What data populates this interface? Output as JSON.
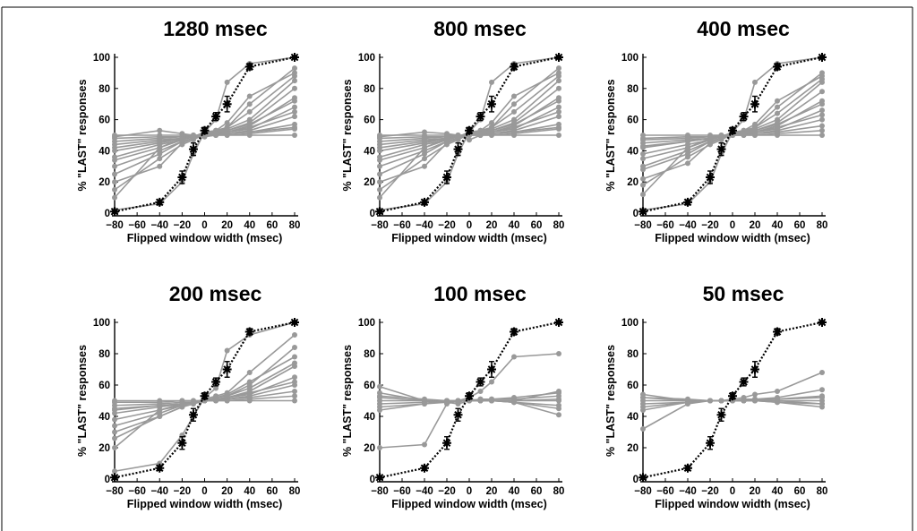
{
  "colors": {
    "individual": "#999999",
    "mean": "#000000",
    "border": "#000000"
  },
  "chart_data": [
    {
      "type": "line",
      "title": "1280 msec",
      "xlabel": "Flipped window width (msec)",
      "ylabel": "% \"LAST\" responses",
      "x": [
        -80,
        -40,
        -20,
        -10,
        0,
        10,
        20,
        40,
        80
      ],
      "xticks": [
        "−80",
        "−60",
        "−40",
        "−20",
        "0",
        "20",
        "40",
        "60",
        "80"
      ],
      "yticks": [
        "0",
        "20",
        "40",
        "60",
        "80",
        "100"
      ],
      "xlim": [
        -80,
        80
      ],
      "ylim": [
        0,
        100
      ],
      "mean_series": {
        "values": [
          1,
          7,
          23,
          41,
          53,
          62,
          70,
          94,
          100
        ],
        "errors": [
          1,
          1.5,
          4,
          4,
          2,
          2.5,
          5,
          2,
          0.5
        ]
      },
      "individual_series": [
        [
          2,
          6,
          20,
          38,
          52,
          60,
          84,
          96,
          100
        ],
        [
          10,
          42,
          48,
          49,
          52,
          53,
          55,
          70,
          93
        ],
        [
          20,
          30,
          45,
          48,
          51,
          52,
          54,
          60,
          85
        ],
        [
          30,
          40,
          46,
          48,
          50,
          52,
          53,
          58,
          80
        ],
        [
          36,
          44,
          47,
          49,
          50,
          51,
          52,
          56,
          74
        ],
        [
          40,
          45,
          48,
          49,
          50,
          51,
          52,
          54,
          68
        ],
        [
          44,
          47,
          48,
          49,
          50,
          51,
          51,
          53,
          62
        ],
        [
          46,
          48,
          49,
          49,
          50,
          50,
          51,
          52,
          57
        ],
        [
          48,
          49,
          49,
          50,
          50,
          50,
          50,
          51,
          54
        ],
        [
          50,
          50,
          50,
          50,
          50,
          50,
          50,
          50,
          50
        ],
        [
          25,
          38,
          46,
          48,
          50,
          52,
          55,
          65,
          88
        ],
        [
          15,
          35,
          44,
          47,
          51,
          53,
          58,
          75,
          90
        ],
        [
          34,
          42,
          47,
          49,
          50,
          51,
          53,
          57,
          72
        ],
        [
          42,
          46,
          48,
          49,
          50,
          51,
          52,
          55,
          65
        ],
        [
          49,
          53,
          51,
          50,
          49,
          50,
          51,
          52,
          55
        ]
      ]
    },
    {
      "type": "line",
      "title": "800 msec",
      "xlabel": "Flipped window width (msec)",
      "ylabel": "% \"LAST\" responses",
      "x": [
        -80,
        -40,
        -20,
        -10,
        0,
        10,
        20,
        40,
        80
      ],
      "xticks": [
        "−80",
        "−60",
        "−40",
        "−20",
        "0",
        "20",
        "40",
        "60",
        "80"
      ],
      "yticks": [
        "0",
        "20",
        "40",
        "60",
        "80",
        "100"
      ],
      "xlim": [
        -80,
        80
      ],
      "ylim": [
        0,
        100
      ],
      "mean_series": {
        "values": [
          1,
          7,
          23,
          41,
          53,
          62,
          70,
          94,
          100
        ],
        "errors": [
          1,
          1.5,
          4,
          4,
          2,
          2.5,
          5,
          2,
          0.5
        ]
      },
      "individual_series": [
        [
          2,
          6,
          20,
          38,
          52,
          60,
          84,
          96,
          100
        ],
        [
          10,
          42,
          48,
          49,
          52,
          53,
          55,
          70,
          93
        ],
        [
          20,
          30,
          45,
          48,
          51,
          52,
          54,
          60,
          85
        ],
        [
          30,
          40,
          46,
          48,
          50,
          52,
          53,
          58,
          80
        ],
        [
          36,
          44,
          47,
          49,
          50,
          51,
          52,
          56,
          74
        ],
        [
          40,
          45,
          48,
          49,
          50,
          51,
          52,
          54,
          68
        ],
        [
          44,
          47,
          48,
          49,
          50,
          51,
          51,
          53,
          62
        ],
        [
          46,
          48,
          49,
          49,
          50,
          50,
          51,
          52,
          57
        ],
        [
          48,
          49,
          49,
          50,
          50,
          50,
          50,
          51,
          54
        ],
        [
          50,
          50,
          50,
          50,
          50,
          50,
          50,
          50,
          50
        ],
        [
          25,
          38,
          46,
          48,
          50,
          52,
          55,
          65,
          88
        ],
        [
          15,
          35,
          44,
          47,
          51,
          53,
          58,
          75,
          90
        ],
        [
          34,
          42,
          47,
          49,
          50,
          51,
          53,
          57,
          72
        ],
        [
          42,
          46,
          48,
          49,
          50,
          51,
          52,
          55,
          65
        ],
        [
          49,
          52,
          51,
          50,
          47,
          50,
          51,
          52,
          55
        ]
      ]
    },
    {
      "type": "line",
      "title": "400 msec",
      "xlabel": "Flipped window width (msec)",
      "ylabel": "% \"LAST\" responses",
      "x": [
        -80,
        -40,
        -20,
        -10,
        0,
        10,
        20,
        40,
        80
      ],
      "xticks": [
        "−80",
        "−60",
        "−40",
        "−20",
        "0",
        "20",
        "40",
        "60",
        "80"
      ],
      "yticks": [
        "0",
        "20",
        "40",
        "60",
        "80",
        "100"
      ],
      "xlim": [
        -80,
        80
      ],
      "ylim": [
        0,
        100
      ],
      "mean_series": {
        "values": [
          1,
          7,
          23,
          41,
          53,
          62,
          70,
          94,
          100
        ],
        "errors": [
          1,
          1.5,
          4,
          4,
          2,
          2.5,
          5,
          2,
          0.5
        ]
      },
      "individual_series": [
        [
          2,
          6,
          20,
          38,
          52,
          60,
          84,
          96,
          100
        ],
        [
          12,
          42,
          48,
          49,
          52,
          53,
          55,
          68,
          90
        ],
        [
          22,
          32,
          45,
          48,
          51,
          52,
          54,
          60,
          84
        ],
        [
          30,
          40,
          46,
          48,
          50,
          52,
          53,
          58,
          78
        ],
        [
          38,
          44,
          47,
          49,
          50,
          51,
          52,
          56,
          72
        ],
        [
          42,
          46,
          48,
          49,
          50,
          51,
          52,
          54,
          66
        ],
        [
          45,
          47,
          48,
          49,
          50,
          51,
          51,
          53,
          60
        ],
        [
          47,
          48,
          49,
          49,
          50,
          50,
          51,
          52,
          56
        ],
        [
          48,
          49,
          49,
          50,
          50,
          50,
          50,
          51,
          53
        ],
        [
          50,
          50,
          50,
          50,
          50,
          50,
          50,
          50,
          50
        ],
        [
          28,
          38,
          46,
          48,
          50,
          52,
          55,
          64,
          86
        ],
        [
          18,
          36,
          44,
          47,
          51,
          53,
          57,
          72,
          88
        ],
        [
          35,
          42,
          47,
          49,
          50,
          51,
          53,
          57,
          70
        ],
        [
          43,
          46,
          48,
          49,
          50,
          51,
          52,
          55,
          63
        ]
      ]
    },
    {
      "type": "line",
      "title": "200 msec",
      "xlabel": "Flipped window width (msec)",
      "ylabel": "% \"LAST\" responses",
      "x": [
        -80,
        -40,
        -20,
        -10,
        0,
        10,
        20,
        40,
        80
      ],
      "xticks": [
        "−80",
        "−60",
        "−40",
        "−20",
        "0",
        "20",
        "40",
        "60",
        "80"
      ],
      "yticks": [
        "0",
        "20",
        "40",
        "60",
        "80",
        "100"
      ],
      "xlim": [
        -80,
        80
      ],
      "ylim": [
        0,
        100
      ],
      "mean_series": {
        "values": [
          1,
          7,
          23,
          41,
          53,
          62,
          70,
          94,
          100
        ],
        "errors": [
          1,
          1.5,
          4,
          4,
          2,
          2.5,
          5,
          2,
          0.5
        ]
      },
      "individual_series": [
        [
          5,
          10,
          28,
          40,
          52,
          58,
          82,
          92,
          100
        ],
        [
          20,
          44,
          48,
          49,
          51,
          53,
          55,
          68,
          92
        ],
        [
          30,
          40,
          46,
          48,
          50,
          52,
          53,
          60,
          84
        ],
        [
          38,
          44,
          47,
          49,
          50,
          51,
          52,
          56,
          72
        ],
        [
          42,
          46,
          48,
          49,
          50,
          51,
          52,
          54,
          65
        ],
        [
          45,
          47,
          48,
          49,
          50,
          51,
          51,
          53,
          60
        ],
        [
          47,
          48,
          49,
          49,
          50,
          50,
          51,
          52,
          56
        ],
        [
          49,
          49,
          50,
          50,
          50,
          50,
          50,
          51,
          53
        ],
        [
          50,
          50,
          50,
          50,
          50,
          50,
          50,
          50,
          50
        ],
        [
          34,
          42,
          47,
          49,
          50,
          52,
          54,
          62,
          78
        ],
        [
          44,
          47,
          48,
          49,
          50,
          51,
          52,
          55,
          62
        ],
        [
          26,
          40,
          46,
          48,
          50,
          52,
          53,
          58,
          74
        ]
      ]
    },
    {
      "type": "line",
      "title": "100 msec",
      "xlabel": "Flipped window width (msec)",
      "ylabel": "% \"LAST\" responses",
      "x": [
        -80,
        -40,
        -20,
        -10,
        0,
        10,
        20,
        40,
        80
      ],
      "xticks": [
        "−80",
        "−60",
        "−40",
        "−20",
        "0",
        "20",
        "40",
        "60",
        "80"
      ],
      "yticks": [
        "0",
        "20",
        "40",
        "60",
        "80",
        "100"
      ],
      "xlim": [
        -80,
        80
      ],
      "ylim": [
        0,
        100
      ],
      "mean_series": {
        "values": [
          1,
          7,
          23,
          41,
          53,
          62,
          70,
          94,
          100
        ],
        "errors": [
          1,
          1.5,
          4,
          4,
          2,
          2.5,
          5,
          2,
          0.5
        ]
      },
      "individual_series": [
        [
          20,
          22,
          48,
          50,
          52,
          56,
          62,
          78,
          80
        ],
        [
          59,
          50,
          49,
          48,
          50,
          51,
          50,
          49,
          41
        ],
        [
          55,
          50,
          49,
          50,
          50,
          51,
          51,
          52,
          55
        ],
        [
          52,
          50,
          50,
          50,
          50,
          50,
          51,
          51,
          53
        ],
        [
          50,
          50,
          50,
          50,
          50,
          50,
          50,
          50,
          50
        ],
        [
          48,
          49,
          50,
          50,
          50,
          50,
          50,
          49,
          47
        ],
        [
          46,
          48,
          49,
          50,
          50,
          50,
          50,
          49,
          45
        ],
        [
          44,
          48,
          50,
          49,
          51,
          50,
          50,
          50,
          56
        ],
        [
          53,
          51,
          50,
          50,
          50,
          50,
          50,
          50,
          51
        ]
      ]
    },
    {
      "type": "line",
      "title": "50 msec",
      "xlabel": "Flipped window width (msec)",
      "ylabel": "% \"LAST\" responses",
      "x": [
        -80,
        -40,
        -20,
        -10,
        0,
        10,
        20,
        40,
        80
      ],
      "xticks": [
        "−80",
        "−60",
        "−40",
        "−20",
        "0",
        "20",
        "40",
        "60",
        "80"
      ],
      "yticks": [
        "0",
        "20",
        "40",
        "60",
        "80",
        "100"
      ],
      "xlim": [
        -80,
        80
      ],
      "ylim": [
        0,
        100
      ],
      "mean_series": {
        "values": [
          1,
          7,
          23,
          41,
          53,
          62,
          70,
          94,
          100
        ],
        "errors": [
          1,
          1.5,
          4,
          4,
          2,
          2.5,
          5,
          2,
          0.5
        ]
      },
      "individual_series": [
        [
          32,
          48,
          50,
          50,
          51,
          52,
          54,
          56,
          68
        ],
        [
          54,
          50,
          50,
          50,
          50,
          51,
          51,
          52,
          57
        ],
        [
          52,
          50,
          50,
          50,
          50,
          50,
          51,
          51,
          53
        ],
        [
          50,
          50,
          50,
          50,
          50,
          50,
          50,
          50,
          50
        ],
        [
          48,
          49,
          50,
          50,
          50,
          50,
          50,
          49,
          48
        ],
        [
          46,
          49,
          50,
          50,
          50,
          50,
          50,
          49,
          46
        ],
        [
          44,
          49,
          50,
          50,
          50,
          50,
          50,
          50,
          48
        ],
        [
          52,
          51,
          50,
          50,
          50,
          50,
          50,
          51,
          52
        ]
      ]
    }
  ]
}
